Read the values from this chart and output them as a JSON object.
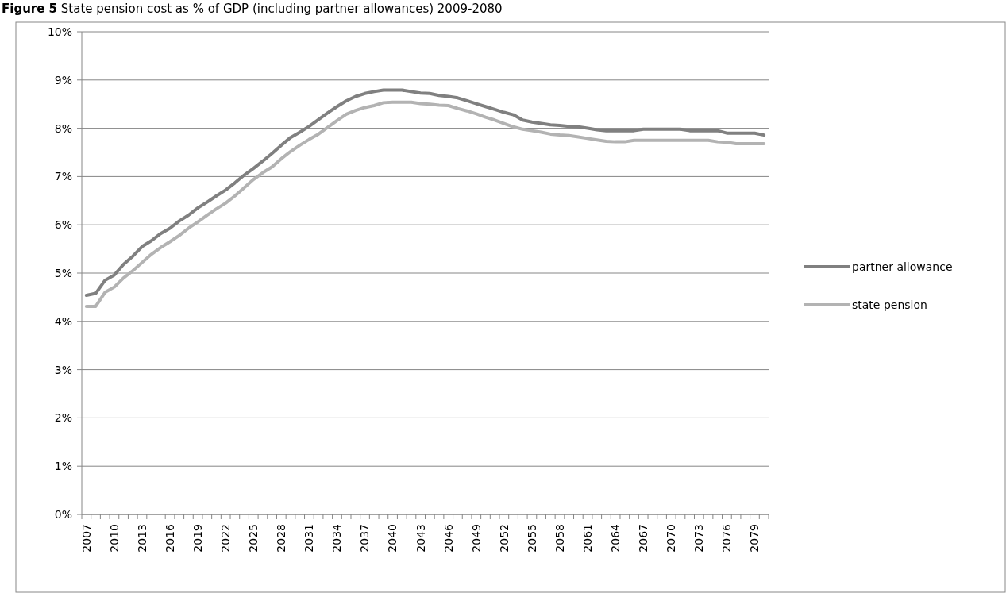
{
  "chart_data": {
    "type": "line",
    "title": "Figure 5  State pension cost as % of GDP (including partner allowances) 2009-2080",
    "categories": [
      "2007",
      null,
      null,
      "2010",
      null,
      null,
      "2013",
      null,
      null,
      "2016",
      null,
      null,
      "2019",
      null,
      null,
      "2022",
      null,
      null,
      "2025",
      null,
      null,
      "2028",
      null,
      null,
      "2031",
      null,
      null,
      "2034",
      null,
      null,
      "2037",
      null,
      null,
      "2040",
      null,
      null,
      "2043",
      null,
      null,
      "2046",
      null,
      null,
      "2049",
      null,
      null,
      "2052",
      null,
      null,
      "2055",
      null,
      null,
      "2058",
      null,
      null,
      "2061",
      null,
      null,
      "2064",
      null,
      null,
      "2067",
      null,
      null,
      "2070",
      null,
      null,
      "2073",
      null,
      null,
      "2076",
      null,
      null,
      "2079",
      null
    ],
    "series": [
      {
        "name": "partner allowance",
        "color": "#808080",
        "values": [
          4.54,
          4.58,
          4.85,
          4.96,
          5.18,
          5.35,
          5.55,
          5.67,
          5.82,
          5.93,
          6.08,
          6.2,
          6.35,
          6.47,
          6.6,
          6.72,
          6.87,
          7.03,
          7.17,
          7.32,
          7.48,
          7.65,
          7.81,
          7.92,
          8.04,
          8.18,
          8.32,
          8.45,
          8.57,
          8.66,
          8.72,
          8.76,
          8.79,
          8.79,
          8.79,
          8.76,
          8.73,
          8.72,
          8.68,
          8.66,
          8.63,
          8.57,
          8.51,
          8.45,
          8.39,
          8.33,
          8.28,
          8.17,
          8.13,
          8.1,
          8.07,
          8.06,
          8.04,
          8.03,
          8.0,
          7.97,
          7.95,
          7.95,
          7.95,
          7.95,
          7.98,
          7.98,
          7.98,
          7.98,
          7.98,
          7.95,
          7.95,
          7.95,
          7.95,
          7.9,
          7.9,
          7.9,
          7.9,
          7.86
        ]
      },
      {
        "name": "state pension",
        "color": "#b3b3b3",
        "values": [
          4.31,
          4.31,
          4.6,
          4.71,
          4.9,
          5.05,
          5.22,
          5.39,
          5.53,
          5.65,
          5.78,
          5.93,
          6.06,
          6.2,
          6.33,
          6.45,
          6.6,
          6.77,
          6.94,
          7.08,
          7.2,
          7.37,
          7.52,
          7.65,
          7.77,
          7.88,
          8.02,
          8.16,
          8.29,
          8.37,
          8.43,
          8.47,
          8.53,
          8.54,
          8.54,
          8.54,
          8.51,
          8.5,
          8.48,
          8.47,
          8.41,
          8.36,
          8.3,
          8.23,
          8.17,
          8.1,
          8.03,
          7.98,
          7.95,
          7.92,
          7.88,
          7.86,
          7.85,
          7.82,
          7.79,
          7.76,
          7.73,
          7.72,
          7.72,
          7.75,
          7.75,
          7.75,
          7.75,
          7.75,
          7.75,
          7.75,
          7.75,
          7.75,
          7.72,
          7.71,
          7.68,
          7.68,
          7.68,
          7.68
        ]
      }
    ],
    "ylim": [
      0,
      10
    ],
    "yticks": [
      {
        "value": 0,
        "label": "0%"
      },
      {
        "value": 1,
        "label": "1%"
      },
      {
        "value": 2,
        "label": "2%"
      },
      {
        "value": 3,
        "label": "3%"
      },
      {
        "value": 4,
        "label": "4%"
      },
      {
        "value": 5,
        "label": "5%"
      },
      {
        "value": 6,
        "label": "6%"
      },
      {
        "value": 7,
        "label": "7%"
      },
      {
        "value": 8,
        "label": "8%"
      },
      {
        "value": 9,
        "label": "9%"
      },
      {
        "value": 10,
        "label": "10%"
      }
    ],
    "grid": "y",
    "legend": "right",
    "marker": "none",
    "line_style": "solid"
  }
}
